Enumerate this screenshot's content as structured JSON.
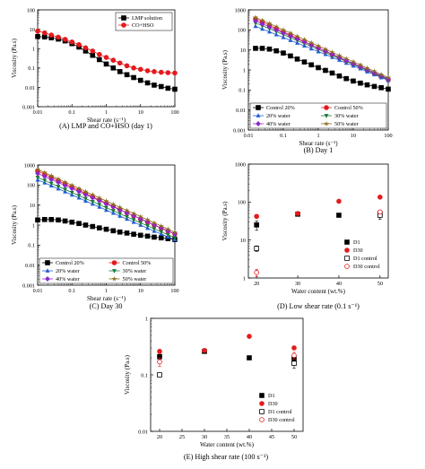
{
  "chart_data": [
    {
      "id": "A",
      "type": "line",
      "caption": "(A) LMP and CO+HSO (day 1)",
      "xlabel": "Shear rate (s⁻¹)",
      "ylabel": "Viscosity (Pa.s)",
      "xscale": "log",
      "yscale": "log",
      "xlim": [
        0.01,
        100
      ],
      "ylim": [
        0.001,
        100
      ],
      "xticks": [
        "0.01",
        "0.1",
        "1",
        "10",
        "100"
      ],
      "yticks": [
        "0.001",
        "0.01",
        "0.1",
        "1",
        "10",
        "100"
      ],
      "legend_position": "top-right",
      "series": [
        {
          "name": "LMP solution",
          "color": "#000000",
          "marker": "square",
          "x": [
            0.01,
            0.016,
            0.025,
            0.04,
            0.063,
            0.1,
            0.16,
            0.25,
            0.4,
            0.63,
            1,
            1.6,
            2.5,
            4,
            6.3,
            10,
            16,
            25,
            40,
            63,
            100
          ],
          "y": [
            4.2,
            4.0,
            3.6,
            3.1,
            2.5,
            1.8,
            1.2,
            0.75,
            0.45,
            0.27,
            0.16,
            0.1,
            0.065,
            0.045,
            0.032,
            0.023,
            0.017,
            0.013,
            0.011,
            0.009,
            0.008
          ]
        },
        {
          "name": "CO+HSO",
          "color": "#e41a1c",
          "marker": "circle",
          "x": [
            0.01,
            0.016,
            0.025,
            0.04,
            0.063,
            0.1,
            0.16,
            0.25,
            0.4,
            0.63,
            1,
            1.6,
            2.5,
            4,
            6.3,
            10,
            16,
            25,
            40,
            63,
            100
          ],
          "y": [
            8.0,
            6.5,
            5.0,
            3.9,
            3.0,
            2.2,
            1.6,
            1.1,
            0.75,
            0.5,
            0.35,
            0.25,
            0.18,
            0.13,
            0.1,
            0.085,
            0.072,
            0.065,
            0.06,
            0.057,
            0.055
          ]
        }
      ]
    },
    {
      "id": "B",
      "type": "line",
      "caption": "(B) Day 1",
      "xlabel": "Shear rate (s⁻¹)",
      "ylabel": "Viscosity (Pa.s)",
      "xscale": "log",
      "yscale": "log",
      "xlim": [
        0.01,
        100
      ],
      "ylim": [
        0.001,
        1000
      ],
      "xticks": [
        "0.01",
        "0.1",
        "1",
        "10",
        "100"
      ],
      "yticks": [
        "0.001",
        "0.01",
        "0.1",
        "1",
        "10",
        "100",
        "1000"
      ],
      "legend_position": "bottom",
      "series": [
        {
          "name": "Control 20%",
          "color": "#000000",
          "marker": "square",
          "x": [
            0.016,
            0.025,
            0.04,
            0.063,
            0.1,
            0.16,
            0.25,
            0.4,
            0.63,
            1,
            1.6,
            2.5,
            4,
            6.3,
            10,
            16,
            25,
            40,
            63,
            100
          ],
          "y": [
            12,
            12,
            11,
            9,
            7,
            5,
            3.5,
            2.5,
            1.8,
            1.3,
            0.95,
            0.7,
            0.5,
            0.37,
            0.28,
            0.22,
            0.18,
            0.15,
            0.13,
            0.11
          ]
        },
        {
          "name": "Control 50%",
          "color": "#e41a1c",
          "marker": "circle",
          "x": [
            0.016,
            0.025,
            0.04,
            0.063,
            0.1,
            0.16,
            0.25,
            0.4,
            0.63,
            1,
            1.6,
            2.5,
            4,
            6.3,
            10,
            16,
            25,
            40,
            63,
            100
          ],
          "y": [
            350,
            250,
            170,
            115,
            80,
            55,
            38,
            26,
            18,
            12.5,
            8.6,
            6,
            4.1,
            2.9,
            2,
            1.4,
            0.95,
            0.65,
            0.45,
            0.32
          ]
        },
        {
          "name": "20% water",
          "color": "#1f5fd6",
          "marker": "triangle-up",
          "x": [
            0.016,
            0.025,
            0.04,
            0.063,
            0.1,
            0.16,
            0.25,
            0.4,
            0.63,
            1,
            1.6,
            2.5,
            4,
            6.3,
            10,
            16,
            25,
            40,
            63,
            100
          ],
          "y": [
            150,
            110,
            80,
            58,
            42,
            30,
            22,
            16,
            11.5,
            8.2,
            6,
            4.3,
            3.1,
            2.2,
            1.6,
            1.15,
            0.82,
            0.58,
            0.42,
            0.3
          ]
        },
        {
          "name": "30% water",
          "color": "#1a7a3a",
          "marker": "triangle-down",
          "x": [
            0.016,
            0.025,
            0.04,
            0.063,
            0.1,
            0.16,
            0.25,
            0.4,
            0.63,
            1,
            1.6,
            2.5,
            4,
            6.3,
            10,
            16,
            25,
            40,
            63,
            100
          ],
          "y": [
            220,
            160,
            115,
            82,
            58,
            41,
            29,
            21,
            15,
            10.5,
            7.5,
            5.3,
            3.8,
            2.7,
            1.9,
            1.35,
            0.95,
            0.68,
            0.48,
            0.34
          ]
        },
        {
          "name": "40% water",
          "color": "#8e24c9",
          "marker": "diamond",
          "x": [
            0.016,
            0.025,
            0.04,
            0.063,
            0.1,
            0.16,
            0.25,
            0.4,
            0.63,
            1,
            1.6,
            2.5,
            4,
            6.3,
            10,
            16,
            25,
            40,
            63,
            100
          ],
          "y": [
            280,
            200,
            140,
            100,
            70,
            49,
            35,
            25,
            17.5,
            12.3,
            8.7,
            6.1,
            4.3,
            3,
            2.1,
            1.5,
            1.05,
            0.75,
            0.52,
            0.37
          ]
        },
        {
          "name": "50% water",
          "color": "#8a6d1e",
          "marker": "star",
          "x": [
            0.016,
            0.025,
            0.04,
            0.063,
            0.1,
            0.16,
            0.25,
            0.4,
            0.63,
            1,
            1.6,
            2.5,
            4,
            6.3,
            10,
            16,
            25,
            40,
            63,
            100
          ],
          "y": [
            420,
            300,
            210,
            145,
            100,
            70,
            48,
            33,
            23,
            16,
            11,
            7.7,
            5.3,
            3.7,
            2.6,
            1.8,
            1.25,
            0.87,
            0.6,
            0.42
          ]
        }
      ]
    },
    {
      "id": "C",
      "type": "line",
      "caption": "(C) Day 30",
      "xlabel": "Shear rate (s⁻¹)",
      "ylabel": "Viscosity (Pa.s)",
      "xscale": "log",
      "yscale": "log",
      "xlim": [
        0.01,
        100
      ],
      "ylim": [
        0.001,
        1000
      ],
      "xticks": [
        "0.01",
        "0.1",
        "1",
        "10",
        "100"
      ],
      "yticks": [
        "0.001",
        "0.01",
        "0.1",
        "1",
        "10",
        "100",
        "1000"
      ],
      "legend_position": "bottom",
      "series": [
        {
          "name": "Control 20%",
          "color": "#000000",
          "marker": "square",
          "x": [
            0.01,
            0.016,
            0.025,
            0.04,
            0.063,
            0.1,
            0.16,
            0.25,
            0.4,
            0.63,
            1,
            1.6,
            2.5,
            4,
            6.3,
            10,
            16,
            25,
            40,
            63,
            100
          ],
          "y": [
            1.8,
            1.9,
            1.9,
            1.8,
            1.6,
            1.4,
            1.2,
            1.0,
            0.85,
            0.72,
            0.62,
            0.52,
            0.45,
            0.4,
            0.35,
            0.31,
            0.28,
            0.25,
            0.23,
            0.21,
            0.19
          ]
        },
        {
          "name": "Control 50%",
          "color": "#e41a1c",
          "marker": "circle",
          "x": [
            0.01,
            0.016,
            0.025,
            0.04,
            0.063,
            0.1,
            0.16,
            0.25,
            0.4,
            0.63,
            1,
            1.6,
            2.5,
            4,
            6.3,
            10,
            16,
            25,
            40,
            63,
            100
          ],
          "y": [
            500,
            350,
            240,
            165,
            115,
            80,
            55,
            38,
            26,
            18,
            12.5,
            8.6,
            6,
            4.1,
            2.9,
            2,
            1.4,
            1,
            0.7,
            0.5,
            0.36
          ]
        },
        {
          "name": "20% water",
          "color": "#1f5fd6",
          "marker": "triangle-up",
          "x": [
            0.01,
            0.016,
            0.025,
            0.04,
            0.063,
            0.1,
            0.16,
            0.25,
            0.4,
            0.63,
            1,
            1.6,
            2.5,
            4,
            6.3,
            10,
            16,
            25,
            40,
            63,
            100
          ],
          "y": [
            180,
            130,
            92,
            65,
            46,
            32,
            23,
            16,
            11.3,
            8,
            5.6,
            4,
            2.8,
            2,
            1.4,
            1,
            0.7,
            0.5,
            0.36,
            0.26,
            0.19
          ]
        },
        {
          "name": "30% water",
          "color": "#1a7a3a",
          "marker": "triangle-down",
          "x": [
            0.01,
            0.016,
            0.025,
            0.04,
            0.063,
            0.1,
            0.16,
            0.25,
            0.4,
            0.63,
            1,
            1.6,
            2.5,
            4,
            6.3,
            10,
            16,
            25,
            40,
            63,
            100
          ],
          "y": [
            240,
            170,
            120,
            85,
            60,
            42,
            30,
            21,
            15,
            10.5,
            7.4,
            5.2,
            3.7,
            2.6,
            1.85,
            1.3,
            0.92,
            0.65,
            0.46,
            0.33,
            0.24
          ]
        },
        {
          "name": "40% water",
          "color": "#8e24c9",
          "marker": "diamond",
          "x": [
            0.01,
            0.016,
            0.025,
            0.04,
            0.063,
            0.1,
            0.16,
            0.25,
            0.4,
            0.63,
            1,
            1.6,
            2.5,
            4,
            6.3,
            10,
            16,
            25,
            40,
            63,
            100
          ],
          "y": [
            380,
            270,
            190,
            135,
            95,
            67,
            47,
            33,
            23.5,
            16.5,
            11.6,
            8.2,
            5.8,
            4.1,
            2.9,
            2.05,
            1.45,
            1.02,
            0.72,
            0.51,
            0.36
          ]
        },
        {
          "name": "50% water",
          "color": "#8a6d1e",
          "marker": "star",
          "x": [
            0.01,
            0.016,
            0.025,
            0.04,
            0.063,
            0.1,
            0.16,
            0.25,
            0.4,
            0.63,
            1,
            1.6,
            2.5,
            4,
            6.3,
            10,
            16,
            25,
            40,
            63,
            100
          ],
          "y": [
            600,
            420,
            290,
            200,
            140,
            98,
            68,
            47,
            33,
            23,
            16,
            11,
            7.7,
            5.4,
            3.8,
            2.65,
            1.85,
            1.3,
            0.9,
            0.63,
            0.44
          ]
        }
      ]
    },
    {
      "id": "D",
      "type": "scatter",
      "caption": "(D) Low shear rate (0.1 s⁻¹)",
      "xlabel": "Water content (wt.%)",
      "ylabel": "Viscosity (Pa.s)",
      "xscale": "linear",
      "yscale": "log",
      "xlim": [
        18,
        52
      ],
      "ylim": [
        1,
        1000
      ],
      "xticks": [
        "20",
        "30",
        "40",
        "50"
      ],
      "yticks": [
        "1",
        "10",
        "100",
        "1000"
      ],
      "legend_position": "bottom-right",
      "series": [
        {
          "name": "D1",
          "color": "#000000",
          "marker": "square",
          "x": [
            20,
            30,
            40,
            50
          ],
          "y": [
            25,
            48,
            45,
            50
          ],
          "err": [
            7,
            5,
            3,
            8
          ]
        },
        {
          "name": "D30",
          "color": "#e41a1c",
          "marker": "circle",
          "x": [
            20,
            30,
            40,
            50
          ],
          "y": [
            42,
            50,
            105,
            135
          ],
          "err": [
            4,
            4,
            6,
            8
          ]
        },
        {
          "name": "D1 control",
          "color": "#000000",
          "marker": "square-open",
          "x": [
            20,
            50
          ],
          "y": [
            6,
            45
          ],
          "err": [
            1,
            10
          ]
        },
        {
          "name": "D30 control",
          "color": "#e41a1c",
          "marker": "circle-open",
          "x": [
            20,
            50
          ],
          "y": [
            1.4,
            55
          ],
          "err": [
            0.3,
            6
          ]
        }
      ]
    },
    {
      "id": "E",
      "type": "scatter",
      "caption": "(E) High shear rate (100 s⁻¹)",
      "xlabel": "Water content (wt.%)",
      "ylabel": "Viscosity (Pa.s)",
      "xscale": "linear",
      "yscale": "log",
      "xlim": [
        18,
        52
      ],
      "ylim": [
        0.01,
        1
      ],
      "xticks": [
        "20",
        "25",
        "30",
        "35",
        "40",
        "45",
        "50"
      ],
      "yticks": [
        "0.01",
        "0.1",
        "1"
      ],
      "legend_position": "bottom-right",
      "series": [
        {
          "name": "D1",
          "color": "#000000",
          "marker": "square",
          "x": [
            20,
            30,
            40,
            50
          ],
          "y": [
            0.21,
            0.26,
            0.2,
            0.19
          ],
          "err": [
            0.02,
            0.02,
            0.01,
            0.02
          ]
        },
        {
          "name": "D30",
          "color": "#e41a1c",
          "marker": "circle",
          "x": [
            20,
            30,
            40,
            50
          ],
          "y": [
            0.26,
            0.27,
            0.48,
            0.3
          ],
          "err": [
            0.02,
            0.02,
            0.03,
            0.02
          ]
        },
        {
          "name": "D1 control",
          "color": "#000000",
          "marker": "square-open",
          "x": [
            20,
            50
          ],
          "y": [
            0.1,
            0.16
          ],
          "err": [
            0.005,
            0.03
          ]
        },
        {
          "name": "D30 control",
          "color": "#e41a1c",
          "marker": "circle-open",
          "x": [
            20,
            50
          ],
          "y": [
            0.17,
            0.22
          ],
          "err": [
            0.03,
            0.03
          ]
        }
      ]
    }
  ]
}
